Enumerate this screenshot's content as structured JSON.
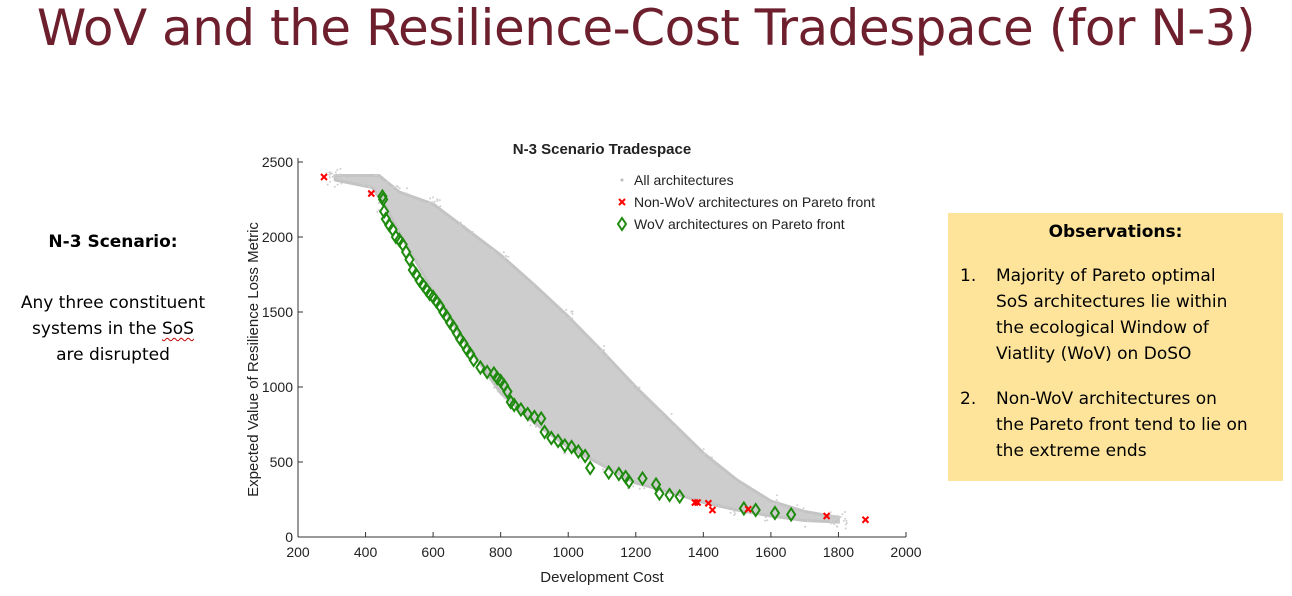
{
  "slide": {
    "title": "WoV and the Resilience-Cost Tradespace (for N-3)"
  },
  "left_panel": {
    "heading": "N-3 Scenario:",
    "body_line1": "Any three constituent",
    "body_line2_pre": "systems in the ",
    "body_line2_sos": "SoS",
    "body_line3": "are disrupted"
  },
  "observations": {
    "title": "Observations:",
    "items": [
      {
        "num": "1.",
        "lines": [
          "Majority of Pareto optimal",
          "SoS architectures lie within",
          "the ecological Window of",
          "Viatlity (WoV) on DoSO"
        ]
      },
      {
        "num": "2.",
        "lines": [
          "Non-WoV architectures on",
          "the Pareto front tend to lie on",
          "the extreme ends"
        ]
      }
    ]
  },
  "colors": {
    "title": "#6e1f2d",
    "cloud": "#c4c4c4",
    "non_wov": "#ff0000",
    "wov": "#1e8a0e",
    "obs_bg": "#fde49a"
  },
  "chart_data": {
    "type": "scatter",
    "title": "N-3 Scenario Tradespace",
    "xlabel": "Development Cost",
    "ylabel": "Expected Value of Resilience Loss Metric",
    "xlim": [
      200,
      2000
    ],
    "ylim": [
      0,
      2500
    ],
    "xticks": [
      200,
      400,
      600,
      800,
      1000,
      1200,
      1400,
      1600,
      1800,
      2000
    ],
    "yticks": [
      0,
      500,
      1000,
      1500,
      2000,
      2500
    ],
    "legend_position": "top-right",
    "series": [
      {
        "name": "All architectures",
        "marker": "dot",
        "color": "#c4c4c4",
        "cloud_outline": [
          [
            310,
            2410
          ],
          [
            440,
            2410
          ],
          [
            500,
            2300
          ],
          [
            600,
            2220
          ],
          [
            700,
            2050
          ],
          [
            800,
            1880
          ],
          [
            900,
            1680
          ],
          [
            1000,
            1470
          ],
          [
            1100,
            1240
          ],
          [
            1200,
            1000
          ],
          [
            1300,
            780
          ],
          [
            1400,
            560
          ],
          [
            1500,
            380
          ],
          [
            1600,
            240
          ],
          [
            1700,
            170
          ],
          [
            1800,
            130
          ],
          [
            1800,
            100
          ],
          [
            1700,
            110
          ],
          [
            1600,
            140
          ],
          [
            1500,
            180
          ],
          [
            1400,
            230
          ],
          [
            1300,
            300
          ],
          [
            1200,
            360
          ],
          [
            1100,
            480
          ],
          [
            1000,
            600
          ],
          [
            900,
            760
          ],
          [
            800,
            960
          ],
          [
            700,
            1280
          ],
          [
            600,
            1640
          ],
          [
            520,
            1950
          ],
          [
            460,
            2200
          ],
          [
            420,
            2330
          ],
          [
            310,
            2380
          ]
        ]
      },
      {
        "name": "Non-WoV architectures on Pareto front",
        "marker": "x",
        "color": "#ff0000",
        "x": [
          277,
          417,
          1375,
          1383,
          1415,
          1427,
          1533,
          1765,
          1880
        ],
        "y": [
          2400,
          2290,
          230,
          230,
          225,
          180,
          185,
          140,
          115
        ]
      },
      {
        "name": "WoV architectures on Pareto front",
        "marker": "diamond",
        "color": "#1e8a0e",
        "x": [
          450,
          452,
          455,
          460,
          470,
          480,
          490,
          500,
          510,
          520,
          530,
          540,
          550,
          560,
          570,
          580,
          590,
          600,
          610,
          620,
          630,
          640,
          650,
          660,
          670,
          680,
          690,
          700,
          710,
          720,
          740,
          760,
          780,
          790,
          800,
          810,
          820,
          830,
          840,
          860,
          880,
          900,
          920,
          930,
          950,
          970,
          990,
          1010,
          1030,
          1050,
          1065,
          1120,
          1150,
          1170,
          1180,
          1220,
          1260,
          1270,
          1300,
          1330,
          1520,
          1555,
          1612,
          1660
        ],
        "y": [
          2270,
          2250,
          2170,
          2120,
          2080,
          2050,
          2000,
          1980,
          1950,
          1900,
          1850,
          1780,
          1750,
          1710,
          1680,
          1650,
          1620,
          1600,
          1570,
          1540,
          1500,
          1470,
          1430,
          1400,
          1360,
          1320,
          1290,
          1250,
          1220,
          1180,
          1130,
          1100,
          1090,
          1060,
          1040,
          1010,
          970,
          900,
          880,
          850,
          820,
          800,
          790,
          700,
          660,
          640,
          610,
          600,
          570,
          540,
          460,
          430,
          420,
          400,
          370,
          390,
          350,
          290,
          280,
          270,
          190,
          180,
          160,
          150
        ]
      }
    ]
  }
}
